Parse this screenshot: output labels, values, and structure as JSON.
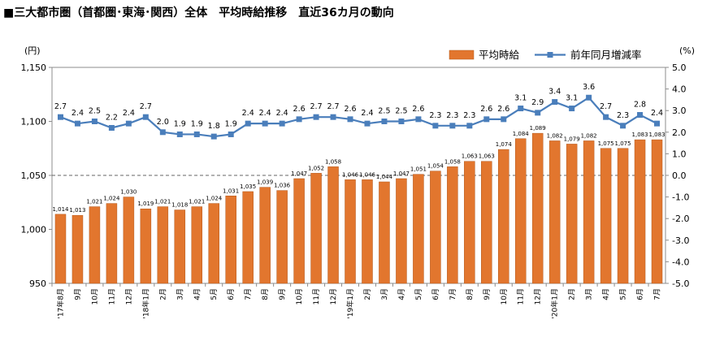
{
  "title": "■三大都市圏（首都圏･東海･関西）全体　平均時給推移　直近36カ月の動向",
  "chart_data": {
    "type": "bar",
    "categories": [
      "'17年8月",
      "9月",
      "10月",
      "11月",
      "12月",
      "'18年1月",
      "2月",
      "3月",
      "4月",
      "5月",
      "6月",
      "7月",
      "8月",
      "9月",
      "10月",
      "11月",
      "12月",
      "'19年1月",
      "2月",
      "3月",
      "4月",
      "5月",
      "6月",
      "7月",
      "8月",
      "9月",
      "10月",
      "11月",
      "12月",
      "'20年1月",
      "2月",
      "3月",
      "4月",
      "5月",
      "6月",
      "7月"
    ],
    "series": [
      {
        "name": "平均時給",
        "type": "bar",
        "axis": "left",
        "color": "#e2762e",
        "values": [
          1014,
          1013,
          1021,
          1024,
          1030,
          1019,
          1021,
          1018,
          1021,
          1024,
          1031,
          1035,
          1039,
          1036,
          1047,
          1052,
          1058,
          1046,
          1046,
          1044,
          1047,
          1051,
          1054,
          1058,
          1063,
          1063,
          1074,
          1084,
          1089,
          1082,
          1079,
          1082,
          1075,
          1075,
          1083,
          1083
        ],
        "labels": [
          "1,014",
          "1,013",
          "1,021",
          "1,024",
          "1,030",
          "1,019",
          "1,021",
          "1,018",
          "1,021",
          "1,024",
          "1,031",
          "1,035",
          "1,039",
          "1,036",
          "1,047",
          "1,052",
          "1,058",
          "1,046",
          "1,046",
          "1,044",
          "1,047",
          "1,051",
          "1,054",
          "1,058",
          "1,063",
          "1,063",
          "1,074",
          "1,084",
          "1,089",
          "1,082",
          "1,079",
          "1,082",
          "1,075",
          "1,075",
          "1,083",
          "1,083"
        ]
      },
      {
        "name": "前年同月増減率",
        "type": "line",
        "axis": "right",
        "color": "#4a7ebb",
        "values": [
          2.7,
          2.4,
          2.5,
          2.2,
          2.4,
          2.7,
          2.0,
          1.9,
          1.9,
          1.8,
          1.9,
          2.4,
          2.4,
          2.4,
          2.6,
          2.7,
          2.7,
          2.6,
          2.4,
          2.5,
          2.5,
          2.6,
          2.3,
          2.3,
          2.3,
          2.6,
          2.6,
          3.1,
          2.9,
          3.4,
          3.1,
          3.6,
          2.7,
          2.3,
          2.8,
          2.4
        ],
        "labels": [
          "2.7",
          "2.4",
          "2.5",
          "2.2",
          "2.4",
          "2.7",
          "2.0",
          "1.9",
          "1.9",
          "1.8",
          "1.9",
          "2.4",
          "2.4",
          "2.4",
          "2.6",
          "2.7",
          "2.7",
          "2.6",
          "2.4",
          "2.5",
          "2.5",
          "2.6",
          "2.3",
          "2.3",
          "2.3",
          "2.6",
          "2.6",
          "3.1",
          "2.9",
          "3.4",
          "3.1",
          "3.6",
          "2.7",
          "2.3",
          "2.8",
          "2.4"
        ]
      }
    ],
    "y_left": {
      "unit": "(円)",
      "min": 950,
      "max": 1150,
      "ref": 1050,
      "ticks": [
        950,
        1000,
        1050,
        1100,
        1150
      ],
      "tick_labels": [
        "950",
        "1,000",
        "1,050",
        "1,100",
        "1,150"
      ]
    },
    "y_right": {
      "unit": "(%)",
      "min": -5,
      "max": 5,
      "ref": 0,
      "ticks": [
        -5,
        -4,
        -3,
        -2,
        -1,
        0,
        1,
        2,
        3,
        4,
        5
      ],
      "tick_labels": [
        "-5.0",
        "-4.0",
        "-3.0",
        "-2.0",
        "-1.0",
        "0.0",
        "1.0",
        "2.0",
        "3.0",
        "4.0",
        "5.0"
      ]
    },
    "grid": false,
    "legend": {
      "position": "top-right"
    }
  }
}
